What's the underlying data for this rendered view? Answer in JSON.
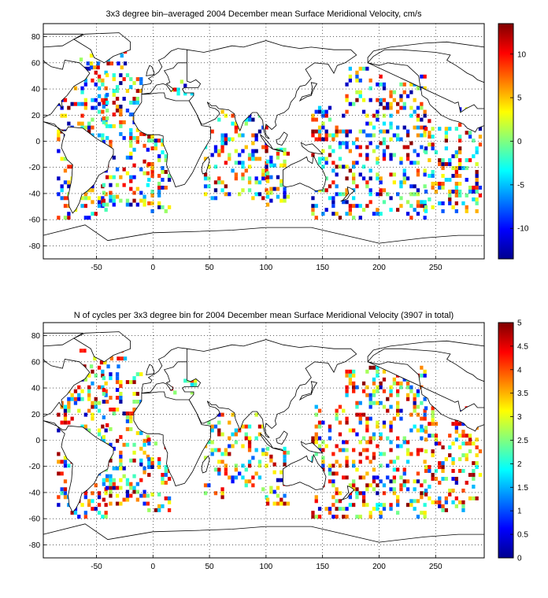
{
  "chart_data": [
    {
      "type": "heatmap",
      "title": "3x3 degree bin–averaged 2004 December mean Surface Meridional Velocity, cm/s",
      "x_ticks": [
        "-50",
        "0",
        "50",
        "100",
        "150",
        "200",
        "250"
      ],
      "x_tick_values": [
        -50,
        0,
        50,
        100,
        150,
        200,
        250
      ],
      "y_ticks": [
        "80",
        "60",
        "40",
        "20",
        "0",
        "-20",
        "-40",
        "-60",
        "-80"
      ],
      "y_tick_values": [
        80,
        60,
        40,
        20,
        0,
        -20,
        -40,
        -60,
        -80
      ],
      "xlim": [
        -97,
        293
      ],
      "ylim": [
        -90,
        90
      ],
      "grid": true,
      "bin_size_deg": 3,
      "colorbar": {
        "ticks": [
          "10",
          "5",
          "0",
          "-5",
          "-10"
        ],
        "tick_values": [
          10,
          5,
          0,
          -5,
          -10
        ],
        "range": [
          -13.5,
          13.5
        ],
        "colormap": "jet"
      }
    },
    {
      "type": "heatmap",
      "title": "N of cycles per 3x3 degree bin for 2004 December mean Surface Meridional Velocity (3907 in total)",
      "x_ticks": [
        "-50",
        "0",
        "50",
        "100",
        "150",
        "200",
        "250"
      ],
      "x_tick_values": [
        -50,
        0,
        50,
        100,
        150,
        200,
        250
      ],
      "y_ticks": [
        "80",
        "60",
        "40",
        "20",
        "0",
        "-20",
        "-40",
        "-60",
        "-80"
      ],
      "y_tick_values": [
        80,
        60,
        40,
        20,
        0,
        -20,
        -40,
        -60,
        -80
      ],
      "xlim": [
        -97,
        293
      ],
      "ylim": [
        -90,
        90
      ],
      "grid": true,
      "bin_size_deg": 3,
      "colorbar": {
        "ticks": [
          "5",
          "4.5",
          "4",
          "3.5",
          "3",
          "2.5",
          "2",
          "1.5",
          "1",
          "0.5",
          "0"
        ],
        "tick_values": [
          5,
          4.5,
          4,
          3.5,
          3,
          2.5,
          2,
          1.5,
          1,
          0.5,
          0
        ],
        "range": [
          0,
          5
        ],
        "colormap": "jet"
      }
    }
  ]
}
